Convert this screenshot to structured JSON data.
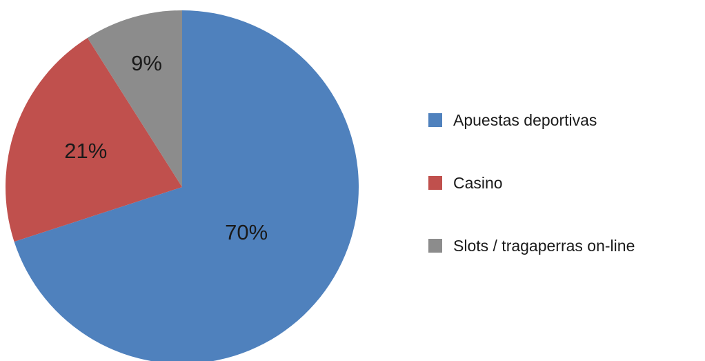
{
  "chart_data": {
    "type": "pie",
    "title": "",
    "categories": [
      "Apuestas deportivas",
      "Casino",
      "Slots / tragaperras on-line"
    ],
    "values": [
      70,
      21,
      9
    ],
    "value_labels": [
      "70%",
      "21%",
      "9%"
    ],
    "colors": [
      "#4f81bd",
      "#c0504d",
      "#8c8c8c"
    ],
    "start_angle_deg": 0,
    "direction": "clockwise",
    "legend_position": "right"
  }
}
